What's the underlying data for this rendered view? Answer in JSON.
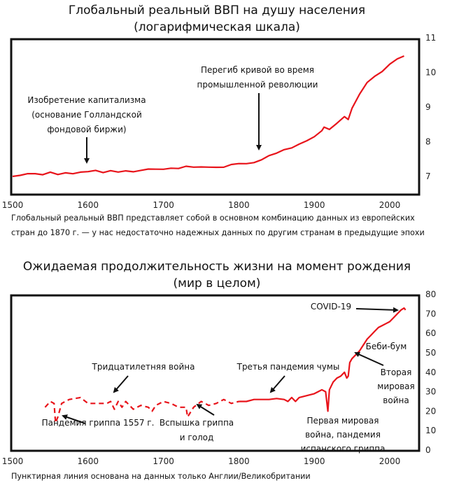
{
  "colors": {
    "line": "#e8141b",
    "text": "#111111",
    "arrow": "#111111"
  },
  "chart_data": [
    {
      "type": "line",
      "title": [
        "Глобальный реальный ВВП на душу населения",
        "(логарифмическая шкала)"
      ],
      "xlabel": "",
      "ylabel": "",
      "xlim": [
        1500,
        2020
      ],
      "ylim": [
        6.5,
        11
      ],
      "xticks": [
        "1500",
        "1600",
        "1700",
        "1800",
        "1900",
        "2000"
      ],
      "yticks": [
        "7",
        "8",
        "9",
        "10",
        "11"
      ],
      "series": [
        {
          "name": "ВВП на душу населения (лог)",
          "style": "solid",
          "x": [
            1500,
            1510,
            1520,
            1530,
            1540,
            1550,
            1560,
            1570,
            1580,
            1590,
            1600,
            1610,
            1620,
            1630,
            1640,
            1650,
            1660,
            1670,
            1680,
            1690,
            1700,
            1710,
            1720,
            1730,
            1740,
            1750,
            1760,
            1770,
            1780,
            1790,
            1800,
            1810,
            1820,
            1830,
            1840,
            1850,
            1860,
            1870,
            1880,
            1890,
            1900,
            1910,
            1913,
            1920,
            1930,
            1940,
            1945,
            1950,
            1960,
            1970,
            1980,
            1990,
            2000,
            2010,
            2019
          ],
          "y": [
            7.0,
            7.05,
            7.1,
            7.08,
            7.03,
            7.1,
            7.05,
            7.12,
            7.1,
            7.13,
            7.12,
            7.15,
            7.1,
            7.18,
            7.15,
            7.17,
            7.12,
            7.15,
            7.2,
            7.22,
            7.23,
            7.25,
            7.22,
            7.27,
            7.25,
            7.28,
            7.29,
            7.28,
            7.26,
            7.32,
            7.35,
            7.37,
            7.42,
            7.5,
            7.6,
            7.65,
            7.75,
            7.82,
            7.95,
            8.05,
            8.15,
            8.3,
            8.4,
            8.35,
            8.55,
            8.75,
            8.65,
            8.95,
            9.35,
            9.7,
            9.9,
            10.05,
            10.25,
            10.38,
            10.45
          ]
        }
      ],
      "annotations": [
        {
          "lines": [
            "Изобретение капитализма",
            "(основание Голландской",
            "фондовой биржи)"
          ],
          "year": 1602
        },
        {
          "lines": [
            "Перегиб кривой во время",
            "промышленной революции"
          ],
          "year": 1820
        }
      ],
      "caption": [
        "Глобальный реальный ВВП представляет собой в основном комбинацию данных из европейских",
        "стран до 1870 г. — у нас недостаточно надежных данных по другим странам в предыдущие эпохи"
      ]
    },
    {
      "type": "line",
      "title": [
        "Ожидаемая продолжительность жизни на момент рождения",
        "(мир в целом)"
      ],
      "xlabel": "",
      "ylabel": "",
      "xlim": [
        1500,
        2020
      ],
      "ylim": [
        0,
        80
      ],
      "xticks": [
        "1500",
        "1600",
        "1700",
        "1800",
        "1900",
        "2000"
      ],
      "yticks": [
        "0",
        "10",
        "20",
        "30",
        "40",
        "50",
        "60",
        "70",
        "80"
      ],
      "series": [
        {
          "name": "Англия/Великобритания",
          "style": "dashed",
          "x": [
            1543,
            1550,
            1555,
            1557,
            1560,
            1565,
            1575,
            1590,
            1600,
            1610,
            1625,
            1630,
            1635,
            1640,
            1645,
            1650,
            1660,
            1670,
            1680,
            1685,
            1690,
            1700,
            1710,
            1720,
            1730,
            1732,
            1740,
            1750,
            1760,
            1770,
            1780,
            1790,
            1800
          ],
          "y": [
            22,
            25,
            24,
            14,
            17,
            24,
            26,
            27,
            24,
            24,
            24,
            25,
            21,
            25,
            22,
            25,
            21,
            23,
            22,
            20,
            23,
            25,
            24,
            22,
            22,
            17,
            22,
            25,
            23,
            24,
            26,
            24,
            25
          ]
        },
        {
          "name": "Мир",
          "style": "solid",
          "x": [
            1800,
            1810,
            1820,
            1830,
            1840,
            1850,
            1860,
            1865,
            1870,
            1875,
            1880,
            1890,
            1900,
            1905,
            1910,
            1915,
            1918,
            1920,
            1925,
            1930,
            1935,
            1940,
            1943,
            1945,
            1947,
            1950,
            1955,
            1960,
            1965,
            1970,
            1975,
            1980,
            1985,
            1990,
            1995,
            2000,
            2005,
            2010,
            2015,
            2019,
            2021
          ],
          "y": [
            25,
            25,
            26,
            26,
            26,
            26.5,
            26,
            25,
            27,
            25,
            27,
            28,
            29,
            30,
            31,
            30,
            20,
            31,
            35,
            37,
            38,
            40,
            37,
            38,
            45,
            47,
            49,
            51,
            54,
            57,
            59,
            61,
            63,
            64,
            65,
            66,
            68,
            70,
            72,
            73,
            72
          ]
        }
      ],
      "annotations": [
        {
          "lines": [
            "COVID-19"
          ],
          "year": 2020
        },
        {
          "lines": [
            "Беби-бум"
          ],
          "year": 1960
        },
        {
          "lines": [
            "Вторая",
            "мировая",
            "война"
          ],
          "year": 1945
        },
        {
          "lines": [
            "Тридцатилетняя война"
          ],
          "year": 1630
        },
        {
          "lines": [
            "Третья пандемия чумы"
          ],
          "year": 1850
        },
        {
          "lines": [
            "Пандемия гриппа 1557 г."
          ],
          "year": 1557
        },
        {
          "lines": [
            "Вспышка гриппа",
            "и голод"
          ],
          "year": 1730
        },
        {
          "lines": [
            "Первая мировая",
            "война, пандемия",
            "испанского гриппа"
          ],
          "year": 1918
        }
      ],
      "caption": [
        "Пунктирная линия основана на данных только Англии/Великобритании"
      ]
    }
  ]
}
